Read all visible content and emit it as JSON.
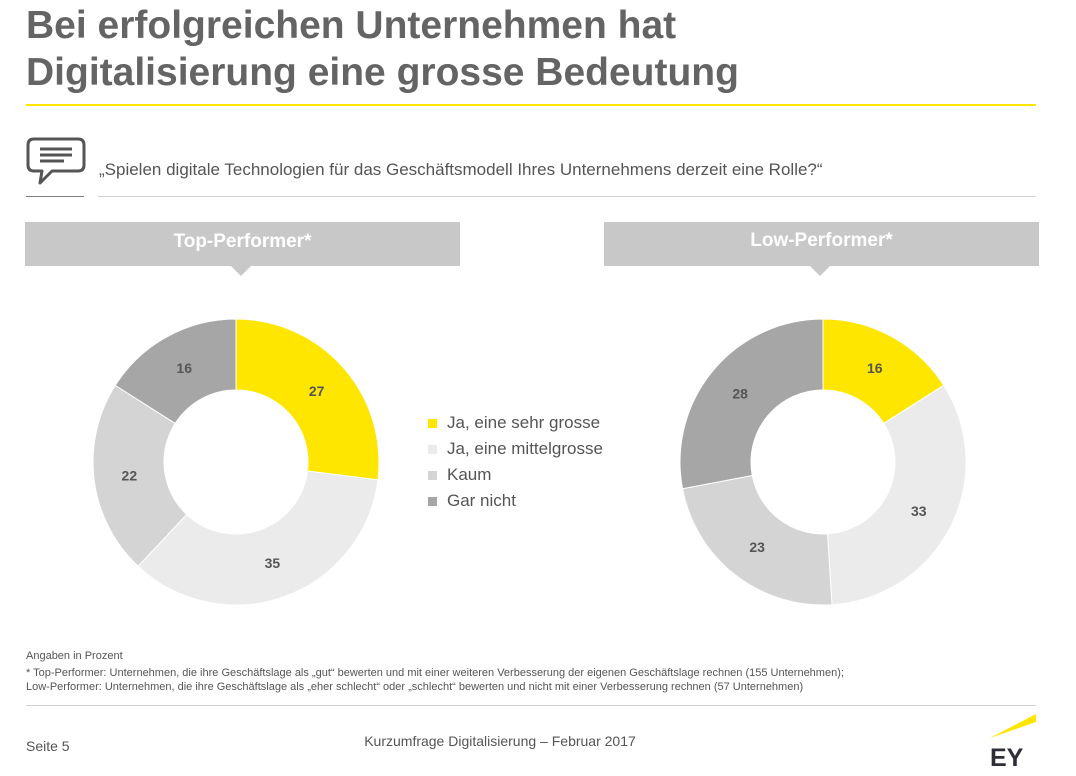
{
  "title": {
    "line1": "Bei erfolgreichen Unternehmen hat",
    "line2": "Digitalisierung eine grosse Bedeutung"
  },
  "question": "„Spielen digitale Technologien für das Geschäftsmodell Ihres Unternehmens derzeit eine Rolle?“",
  "icons": {
    "question": "speech-bubble-icon",
    "logo": "ey-logo"
  },
  "colors": {
    "accent": "#ffe600",
    "banner": "#c8c8c8",
    "label_text": "#555555"
  },
  "banners": {
    "left": "Top-Performer*",
    "right": "Low-Performer*"
  },
  "chart_data": [
    {
      "type": "pie",
      "title": "Top-Performer*",
      "categories": [
        "Ja, eine sehr grosse",
        "Ja, eine mittelgrosse",
        "Kaum",
        "Gar nicht"
      ],
      "values": [
        27,
        35,
        22,
        16
      ],
      "colors": [
        "#ffe600",
        "#ebebeb",
        "#d4d4d4",
        "#a6a6a6"
      ],
      "donut": true
    },
    {
      "type": "pie",
      "title": "Low-Performer*",
      "categories": [
        "Ja, eine sehr grosse",
        "Ja, eine mittelgrosse",
        "Kaum",
        "Gar nicht"
      ],
      "values": [
        16,
        33,
        23,
        28
      ],
      "colors": [
        "#ffe600",
        "#ebebeb",
        "#d4d4d4",
        "#a6a6a6"
      ],
      "donut": true
    }
  ],
  "legend": [
    {
      "label": "Ja, eine sehr grosse",
      "color": "#ffe600"
    },
    {
      "label": "Ja, eine mittelgrosse",
      "color": "#ebebeb"
    },
    {
      "label": "Kaum",
      "color": "#d4d4d4"
    },
    {
      "label": "Gar nicht",
      "color": "#a6a6a6"
    }
  ],
  "notes": {
    "unit": "Angaben in Prozent",
    "top": "* Top-Performer: Unternehmen, die ihre Geschäftslage als „gut“ bewerten und mit einer weiteren Verbesserung der eigenen Geschäftslage rechnen (155 Unternehmen);",
    "low": "Low-Performer: Unternehmen, die ihre Geschäftslage als „eher schlecht“ oder „schlecht“ bewerten und nicht mit einer Verbesserung rechnen (57 Unternehmen)"
  },
  "footer": {
    "page": "Seite 5",
    "center": "Kurzumfrage Digitalisierung – Februar 2017",
    "logo_text": "EY"
  }
}
